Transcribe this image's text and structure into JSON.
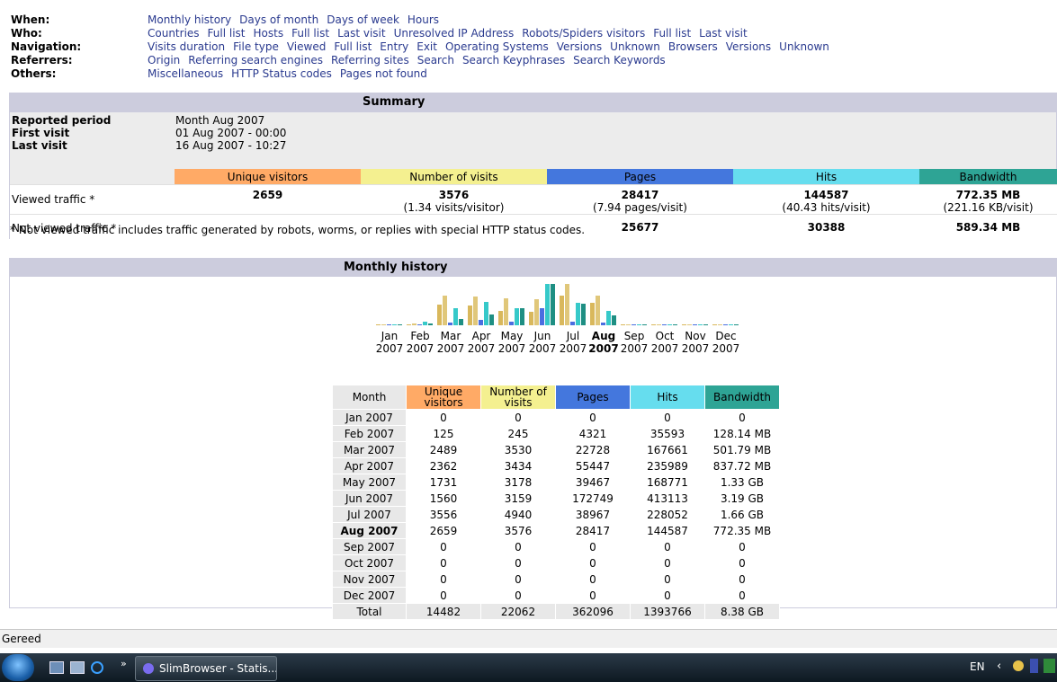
{
  "nav": [
    {
      "label": "When:",
      "links": [
        "Monthly history",
        "Days of month",
        "Days of week",
        "Hours"
      ]
    },
    {
      "label": "Who:",
      "links": [
        "Countries",
        "Full list",
        "Hosts",
        "Full list",
        "Last visit",
        "Unresolved IP Address",
        "Robots/Spiders visitors",
        "Full list",
        "Last visit"
      ]
    },
    {
      "label": "Navigation:",
      "links": [
        "Visits duration",
        "File type",
        "Viewed",
        "Full list",
        "Entry",
        "Exit",
        "Operating Systems",
        "Versions",
        "Unknown",
        "Browsers",
        "Versions",
        "Unknown"
      ]
    },
    {
      "label": "Referrers:",
      "links": [
        "Origin",
        "Referring search engines",
        "Referring sites",
        "Search",
        "Search Keyphrases",
        "Search Keywords"
      ]
    },
    {
      "label": "Others:",
      "links": [
        "Miscellaneous",
        "HTTP Status codes",
        "Pages not found"
      ]
    }
  ],
  "summary": {
    "title": "Summary",
    "reported_period_label": "Reported period",
    "reported_period_value": "Month Aug 2007",
    "first_visit_label": "First visit",
    "first_visit_value": "01 Aug 2007 - 00:00",
    "last_visit_label": "Last visit",
    "last_visit_value": "16 Aug 2007 - 10:27",
    "headers": {
      "unique": "Unique visitors",
      "visits": "Number of visits",
      "pages": "Pages",
      "hits": "Hits",
      "bandwidth": "Bandwidth"
    },
    "viewed": {
      "label": "Viewed traffic *",
      "unique": "2659",
      "visits": "3576",
      "visits_sub": "(1.34 visits/visitor)",
      "pages": "28417",
      "pages_sub": "(7.94 pages/visit)",
      "hits": "144587",
      "hits_sub": "(40.43 hits/visit)",
      "bandwidth": "772.35 MB",
      "bandwidth_sub": "(221.16 KB/visit)"
    },
    "not_viewed": {
      "label": "Not viewed traffic *",
      "pages": "25677",
      "hits": "30388",
      "bandwidth": "589.34 MB"
    },
    "footnote": "* Not viewed traffic includes traffic generated by robots, worms, or replies with special HTTP status codes."
  },
  "monthly": {
    "title": "Monthly history",
    "headers": {
      "month": "Month",
      "unique": "Unique visitors",
      "visits": "Number of visits",
      "pages": "Pages",
      "hits": "Hits",
      "bandwidth": "Bandwidth"
    },
    "rows": [
      {
        "month": "Jan 2007",
        "unique": "0",
        "visits": "0",
        "pages": "0",
        "hits": "0",
        "bandwidth": "0"
      },
      {
        "month": "Feb 2007",
        "unique": "125",
        "visits": "245",
        "pages": "4321",
        "hits": "35593",
        "bandwidth": "128.14 MB"
      },
      {
        "month": "Mar 2007",
        "unique": "2489",
        "visits": "3530",
        "pages": "22728",
        "hits": "167661",
        "bandwidth": "501.79 MB"
      },
      {
        "month": "Apr 2007",
        "unique": "2362",
        "visits": "3434",
        "pages": "55447",
        "hits": "235989",
        "bandwidth": "837.72 MB"
      },
      {
        "month": "May 2007",
        "unique": "1731",
        "visits": "3178",
        "pages": "39467",
        "hits": "168771",
        "bandwidth": "1.33 GB"
      },
      {
        "month": "Jun 2007",
        "unique": "1560",
        "visits": "3159",
        "pages": "172749",
        "hits": "413113",
        "bandwidth": "3.19 GB"
      },
      {
        "month": "Jul 2007",
        "unique": "3556",
        "visits": "4940",
        "pages": "38967",
        "hits": "228052",
        "bandwidth": "1.66 GB"
      },
      {
        "month": "Aug 2007",
        "unique": "2659",
        "visits": "3576",
        "pages": "28417",
        "hits": "144587",
        "bandwidth": "772.35 MB"
      },
      {
        "month": "Sep 2007",
        "unique": "0",
        "visits": "0",
        "pages": "0",
        "hits": "0",
        "bandwidth": "0"
      },
      {
        "month": "Oct 2007",
        "unique": "0",
        "visits": "0",
        "pages": "0",
        "hits": "0",
        "bandwidth": "0"
      },
      {
        "month": "Nov 2007",
        "unique": "0",
        "visits": "0",
        "pages": "0",
        "hits": "0",
        "bandwidth": "0"
      },
      {
        "month": "Dec 2007",
        "unique": "0",
        "visits": "0",
        "pages": "0",
        "hits": "0",
        "bandwidth": "0"
      }
    ],
    "total": {
      "month": "Total",
      "unique": "14482",
      "visits": "22062",
      "pages": "362096",
      "hits": "1393766",
      "bandwidth": "8.38 GB"
    }
  },
  "chart_data": {
    "type": "bar",
    "categories": [
      "Jan 2007",
      "Feb 2007",
      "Mar 2007",
      "Apr 2007",
      "May 2007",
      "Jun 2007",
      "Jul 2007",
      "Aug 2007",
      "Sep 2007",
      "Oct 2007",
      "Nov 2007",
      "Dec 2007"
    ],
    "tick_month": [
      "Jan",
      "Feb",
      "Mar",
      "Apr",
      "May",
      "Jun",
      "Jul",
      "Aug",
      "Sep",
      "Oct",
      "Nov",
      "Dec"
    ],
    "tick_year": [
      "2007",
      "2007",
      "2007",
      "2007",
      "2007",
      "2007",
      "2007",
      "2007",
      "2007",
      "2007",
      "2007",
      "2007"
    ],
    "highlight": "Aug 2007",
    "series": [
      {
        "values": [
          0,
          125,
          2489,
          2362,
          1731,
          1560,
          3556,
          2659,
          0,
          0,
          0,
          0
        ],
        "color": "#d9b85c"
      },
      {
        "values": [
          0,
          245,
          3530,
          3434,
          3178,
          3159,
          4940,
          3576,
          0,
          0,
          0,
          0
        ],
        "color": "#e0c77a"
      },
      {
        "values": [
          0,
          4321,
          22728,
          55447,
          39467,
          172749,
          38967,
          28417,
          0,
          0,
          0,
          0
        ],
        "color": "#4a6ee0"
      },
      {
        "values": [
          0,
          35593,
          167661,
          235989,
          168771,
          413113,
          228052,
          144587,
          0,
          0,
          0,
          0
        ],
        "color": "#36c9c9"
      },
      {
        "values": [
          0,
          128.14,
          501.79,
          837.72,
          1362,
          3266,
          1700,
          772.35,
          0,
          0,
          0,
          0
        ],
        "color": "#1e8f83"
      }
    ],
    "series_scale_groups": [
      [
        0,
        1
      ],
      [
        2,
        3
      ],
      [
        4
      ]
    ]
  },
  "statusbar": {
    "text": "Gereed"
  },
  "taskbar": {
    "task_label": "SlimBrowser - Statis...",
    "lang": "EN"
  }
}
